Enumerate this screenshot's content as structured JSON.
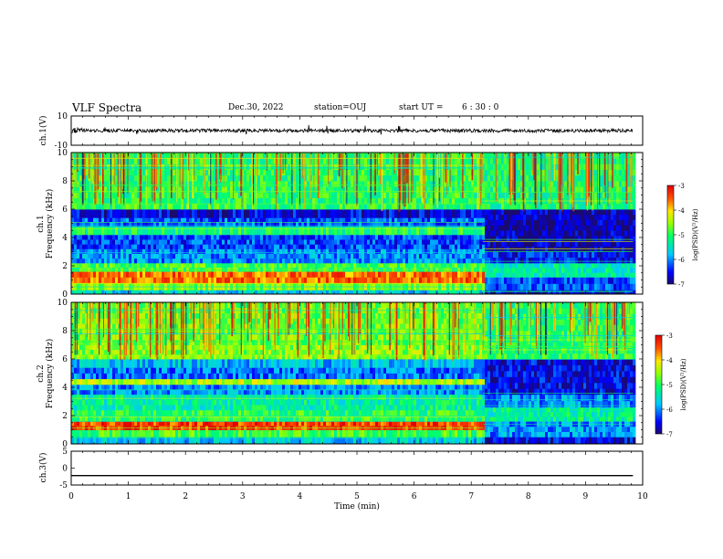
{
  "header": {
    "title": "VLF Spectra",
    "date": "Dec.30, 2022",
    "station": "station=OUJ",
    "start_label": "start  UT =",
    "start_time": "6 : 30 : 0"
  },
  "chart_data": [
    {
      "type": "line",
      "panel": "ch1-waveform",
      "ylabel": "ch.1(V)",
      "ylim": [
        -10,
        10
      ],
      "y_ticks": [
        "10",
        "-10"
      ],
      "xlim": [
        0,
        10
      ],
      "series_color": "#000000",
      "description_values": {
        "baseline": 0,
        "noise_amplitude": 1.2,
        "spike_max": 4,
        "data_end_min": 9.83
      }
    },
    {
      "type": "heatmap",
      "panel": "ch1-spectrogram",
      "ylabel": "Frequency (kHz)",
      "channel_label": "ch.1",
      "ylim": [
        0,
        10
      ],
      "y_ticks": [
        "0",
        "2",
        "4",
        "6",
        "8",
        "10"
      ],
      "xlim": [
        0,
        10
      ],
      "data_end_min": 9.83,
      "regime_change_min": 7.2,
      "colorbar": {
        "label": "log(PSD)(V²/Hz)",
        "range": [
          -7,
          -3
        ],
        "ticks": [
          "-3",
          "-4",
          "-5",
          "-6",
          "-7"
        ]
      },
      "bands_before": [
        {
          "f_low": 0.0,
          "f_high": 0.3,
          "log_psd": -5.6
        },
        {
          "f_low": 0.3,
          "f_high": 0.8,
          "log_psd": -4.6
        },
        {
          "f_low": 0.8,
          "f_high": 1.6,
          "log_psd": -3.6
        },
        {
          "f_low": 1.6,
          "f_high": 2.2,
          "log_psd": -4.9
        },
        {
          "f_low": 2.2,
          "f_high": 3.2,
          "log_psd": -6.0
        },
        {
          "f_low": 3.2,
          "f_high": 4.2,
          "log_psd": -6.3
        },
        {
          "f_low": 4.2,
          "f_high": 4.8,
          "log_psd": -5.1
        },
        {
          "f_low": 4.8,
          "f_high": 5.4,
          "log_psd": -6.2
        },
        {
          "f_low": 5.4,
          "f_high": 6.0,
          "log_psd": -6.6
        },
        {
          "f_low": 6.0,
          "f_high": 10.0,
          "log_psd": -5.0
        }
      ],
      "bands_after": [
        {
          "f_low": 0.0,
          "f_high": 0.3,
          "log_psd": -6.7
        },
        {
          "f_low": 0.3,
          "f_high": 1.2,
          "log_psd": -6.3
        },
        {
          "f_low": 1.2,
          "f_high": 2.2,
          "log_psd": -5.4
        },
        {
          "f_low": 2.2,
          "f_high": 3.0,
          "log_psd": -6.5
        },
        {
          "f_low": 3.0,
          "f_high": 6.0,
          "log_psd": -6.8
        },
        {
          "f_low": 6.0,
          "f_high": 10.0,
          "log_psd": -5.1
        }
      ]
    },
    {
      "type": "heatmap",
      "panel": "ch2-spectrogram",
      "ylabel": "Frequency (kHz)",
      "channel_label": "ch.2",
      "ylim": [
        0,
        10
      ],
      "y_ticks": [
        "0",
        "2",
        "4",
        "6",
        "8",
        "10"
      ],
      "xlim": [
        0,
        10
      ],
      "data_end_min": 9.83,
      "regime_change_min": 7.2,
      "colorbar": {
        "label": "log(PSD)(V²/Hz)",
        "range": [
          -7,
          -3
        ],
        "ticks": [
          "-3",
          "-4",
          "-5",
          "-6",
          "-7"
        ]
      },
      "bands_before": [
        {
          "f_low": 0.0,
          "f_high": 0.5,
          "log_psd": -5.7
        },
        {
          "f_low": 0.5,
          "f_high": 1.0,
          "log_psd": -4.9
        },
        {
          "f_low": 1.0,
          "f_high": 1.6,
          "log_psd": -3.4
        },
        {
          "f_low": 1.6,
          "f_high": 2.4,
          "log_psd": -5.0
        },
        {
          "f_low": 2.4,
          "f_high": 3.5,
          "log_psd": -5.3
        },
        {
          "f_low": 3.5,
          "f_high": 4.2,
          "log_psd": -6.0
        },
        {
          "f_low": 4.2,
          "f_high": 4.6,
          "log_psd": -4.4
        },
        {
          "f_low": 4.6,
          "f_high": 5.4,
          "log_psd": -6.1
        },
        {
          "f_low": 5.4,
          "f_high": 6.0,
          "log_psd": -5.8
        },
        {
          "f_low": 6.0,
          "f_high": 7.0,
          "log_psd": -4.6
        },
        {
          "f_low": 7.0,
          "f_high": 10.0,
          "log_psd": -4.7
        }
      ],
      "bands_after": [
        {
          "f_low": 0.0,
          "f_high": 0.5,
          "log_psd": -6.6
        },
        {
          "f_low": 0.5,
          "f_high": 1.6,
          "log_psd": -6.0
        },
        {
          "f_low": 1.6,
          "f_high": 2.6,
          "log_psd": -5.3
        },
        {
          "f_low": 2.6,
          "f_high": 3.5,
          "log_psd": -6.0
        },
        {
          "f_low": 3.5,
          "f_high": 6.0,
          "log_psd": -6.6
        },
        {
          "f_low": 6.0,
          "f_high": 7.2,
          "log_psd": -5.0
        },
        {
          "f_low": 7.2,
          "f_high": 10.0,
          "log_psd": -5.0
        }
      ]
    },
    {
      "type": "line",
      "panel": "ch3-waveform",
      "ylabel": "ch.3(V)",
      "ylim": [
        -5,
        5
      ],
      "y_ticks": [
        "5",
        "0",
        "-5"
      ],
      "xlim": [
        0,
        10
      ],
      "x": [
        0,
        9.83
      ],
      "y": [
        -2.2,
        -2.2
      ],
      "series_color": "#000000"
    }
  ],
  "x_axis": {
    "label": "Time (min)",
    "ticks": [
      "0",
      "1",
      "2",
      "3",
      "4",
      "5",
      "6",
      "7",
      "8",
      "9",
      "10"
    ]
  }
}
